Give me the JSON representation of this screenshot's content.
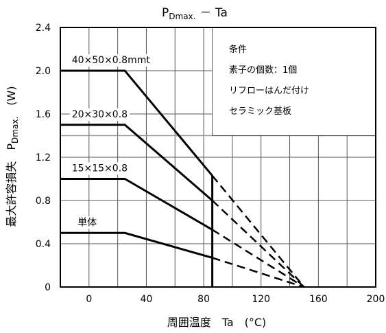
{
  "chart_data": {
    "type": "line",
    "title_main": "P",
    "title_sub": "Dmax.",
    "title_tail": "－ Ta",
    "xlabel": "周囲温度　Ta　(°C)",
    "ylabel_main": "最大許容損失　P",
    "ylabel_sub": "Dmax.",
    "ylabel_tail": "　(W)",
    "xlim": [
      -20,
      200
    ],
    "ylim": [
      0,
      2.4
    ],
    "x_ticks": [
      0,
      40,
      80,
      120,
      160,
      200
    ],
    "x_tick_labels": [
      "0",
      "40",
      "80",
      "120",
      "160",
      "200"
    ],
    "y_ticks": [
      0,
      0.4,
      0.8,
      1.2,
      1.6,
      2.0,
      2.4
    ],
    "y_tick_labels": [
      "0",
      "0.4",
      "0.8",
      "1.2",
      "1.6",
      "2.0",
      "2.4"
    ],
    "grid": true,
    "condition_box": {
      "lines": [
        "条件",
        "素子の個数：1個",
        "リフローはんだ付け",
        "セラミック基板"
      ]
    },
    "series": [
      {
        "name": "40×50×0.8mmt",
        "flat_value": 2.0,
        "knee_x": 25,
        "solid_end": [
          86,
          1.03
        ],
        "dashed_end": [
          150,
          0
        ]
      },
      {
        "name": "20×30×0.8",
        "flat_value": 1.5,
        "knee_x": 25,
        "solid_end": [
          86,
          0.8
        ],
        "dashed_end": [
          150,
          0
        ]
      },
      {
        "name": "15×15×0.8",
        "flat_value": 1.0,
        "knee_x": 25,
        "solid_end": [
          86,
          0.53
        ],
        "dashed_end": [
          150,
          0
        ]
      },
      {
        "name": "単体",
        "flat_value": 0.5,
        "knee_x": 25,
        "solid_end": [
          86,
          0.27
        ],
        "dashed_end": [
          150,
          0
        ]
      }
    ],
    "vertical_marker_x": 86
  }
}
